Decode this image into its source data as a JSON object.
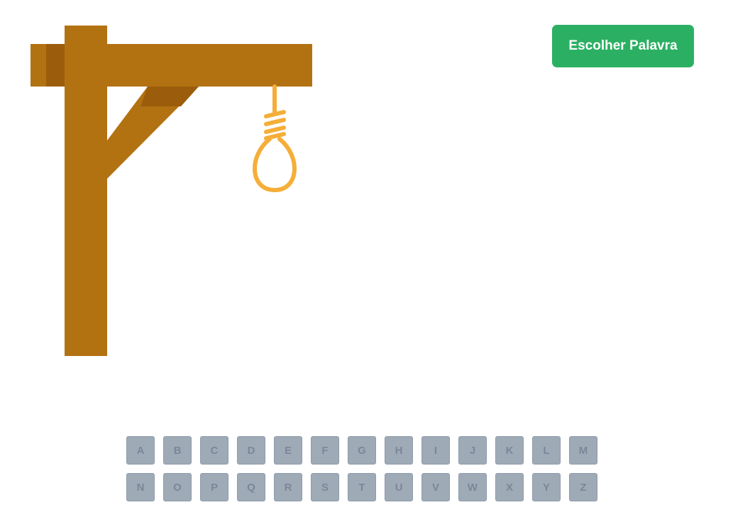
{
  "header": {
    "choose_word_label": "Escolher Palavra"
  },
  "keyboard": {
    "rows": [
      [
        "A",
        "B",
        "C",
        "D",
        "E",
        "F",
        "G",
        "H",
        "I",
        "J",
        "K",
        "L",
        "M"
      ],
      [
        "N",
        "O",
        "P",
        "Q",
        "R",
        "S",
        "T",
        "U",
        "V",
        "W",
        "X",
        "Y",
        "Z"
      ]
    ],
    "state": "disabled"
  },
  "gallows": {
    "wood_color": "#b37212",
    "wood_shadow_color": "#9b5d0c",
    "rope_color": "#f5ae38"
  },
  "colors": {
    "button_bg": "#2bb063",
    "key_bg": "#9eabb7",
    "key_text": "#7b8798"
  }
}
